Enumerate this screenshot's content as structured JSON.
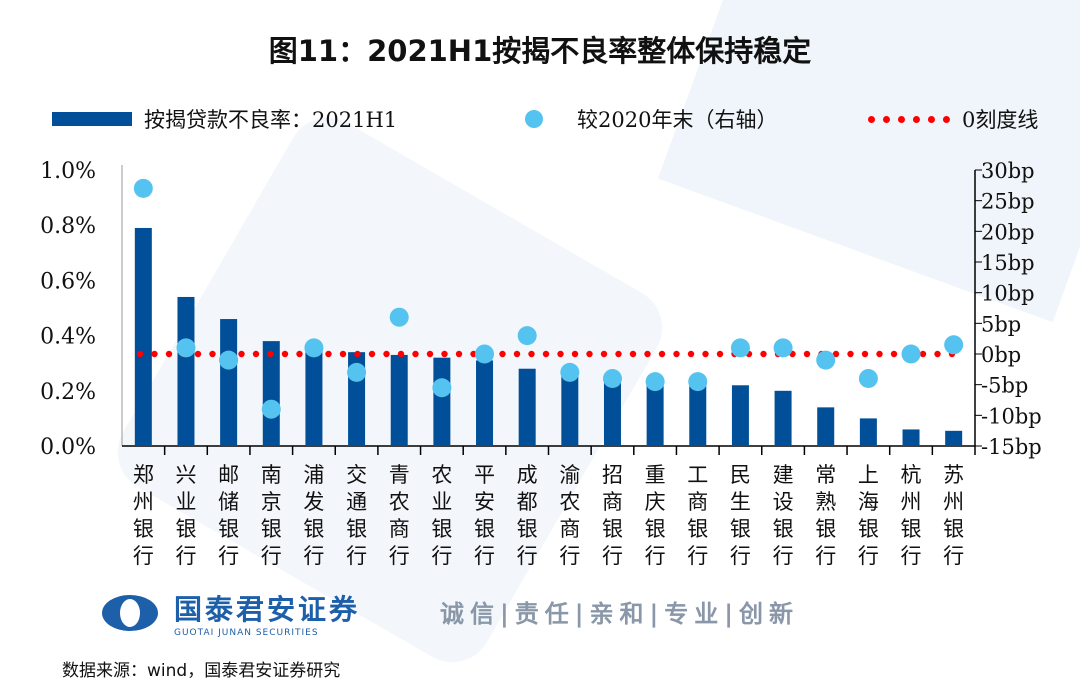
{
  "title": "图11：2021H1按揭不良率整体保持稳定",
  "legend": {
    "bar": "按揭贷款不良率：2021H1",
    "dot": "较2020年末（右轴）",
    "line": "0刻度线"
  },
  "colors": {
    "bar": "#004f98",
    "dot": "#55c3ef",
    "line": "#ff0000"
  },
  "chart_data": {
    "type": "bar+scatter",
    "categories": [
      "郑州银行",
      "兴业银行",
      "邮储银行",
      "南京银行",
      "浦发银行",
      "交通银行",
      "青农商行",
      "农业银行",
      "平安银行",
      "成都银行",
      "渝农商行",
      "招商银行",
      "重庆银行",
      "工商银行",
      "民生银行",
      "建设银行",
      "常熟银行",
      "上海银行",
      "杭州银行",
      "苏州银行"
    ],
    "series": [
      {
        "name": "按揭贷款不良率：2021H1",
        "axis": "left",
        "unit": "%",
        "values": [
          0.79,
          0.54,
          0.46,
          0.38,
          0.35,
          0.34,
          0.33,
          0.32,
          0.31,
          0.28,
          0.27,
          0.25,
          0.24,
          0.235,
          0.22,
          0.2,
          0.14,
          0.1,
          0.06,
          0.055
        ]
      },
      {
        "name": "较2020年末（右轴）",
        "axis": "right",
        "unit": "bp",
        "values": [
          27,
          1,
          -1,
          -9,
          1,
          -3,
          6,
          -5.5,
          0,
          3,
          -3,
          -4,
          -4.5,
          -4.5,
          1,
          1,
          -1,
          -4,
          0,
          1.5
        ]
      }
    ],
    "hline": {
      "name": "0刻度线",
      "value": 0,
      "axis": "right"
    },
    "ylim_left": [
      0,
      1.0
    ],
    "yticks_left": [
      "0.0%",
      "0.2%",
      "0.4%",
      "0.6%",
      "0.8%",
      "1.0%"
    ],
    "ylim_right": [
      -15,
      30
    ],
    "yticks_right": [
      "-15bp",
      "-10bp",
      "-5bp",
      "0bp",
      "5bp",
      "10bp",
      "15bp",
      "20bp",
      "25bp",
      "30bp"
    ],
    "grid": false,
    "legend_position": "top"
  },
  "logo": {
    "name": "国泰君安证券",
    "sub": "GUOTAI JUNAN SECURITIES"
  },
  "slogan": "诚信|责任|亲和|专业|创新",
  "source": "数据来源：wind，国泰君安证券研究"
}
